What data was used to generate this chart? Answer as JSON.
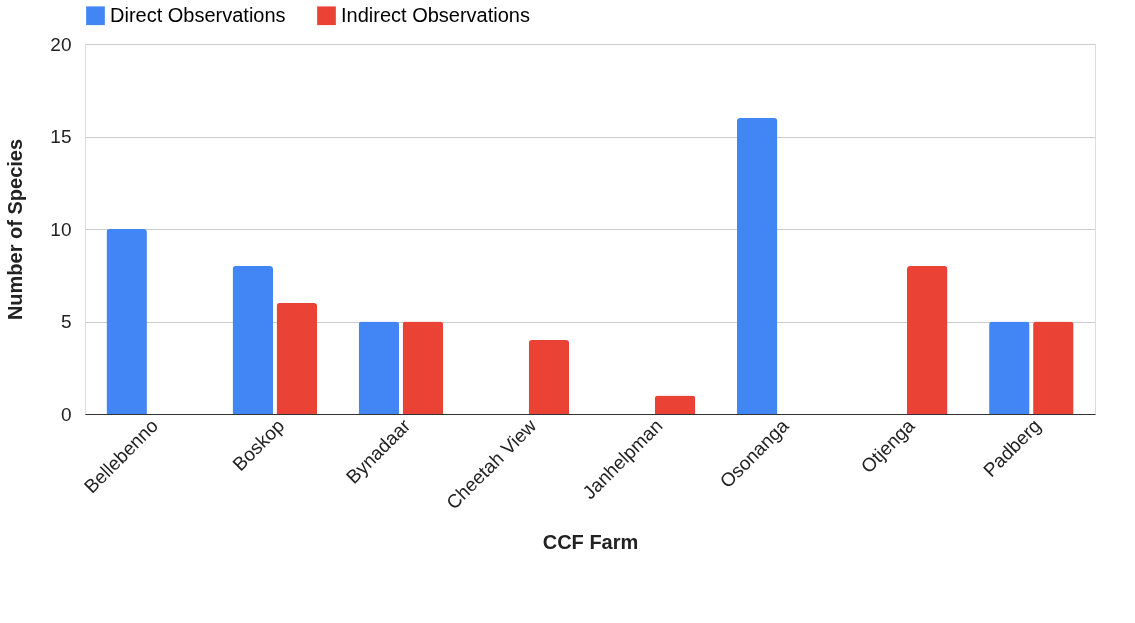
{
  "chart_data": {
    "type": "bar",
    "xlabel": "CCF Farm",
    "ylabel": "Number of Species",
    "categories": [
      "Bellebenno",
      "Boskop",
      "Bynadaar",
      "Cheetah View",
      "Janhelpman",
      "Osonanga",
      "Otjenga",
      "Padberg"
    ],
    "series": [
      {
        "name": "Direct Observations",
        "color": "#4285f4",
        "values": [
          10,
          8,
          5,
          0,
          0,
          16,
          0,
          5
        ]
      },
      {
        "name": "Indirect Observations",
        "color": "#ea4335",
        "values": [
          0,
          6,
          5,
          4,
          1,
          0,
          8,
          5
        ]
      }
    ],
    "ylim": [
      0,
      20
    ],
    "yticks": [
      0,
      5,
      10,
      15,
      20
    ],
    "grid": "y",
    "legend": "top"
  }
}
